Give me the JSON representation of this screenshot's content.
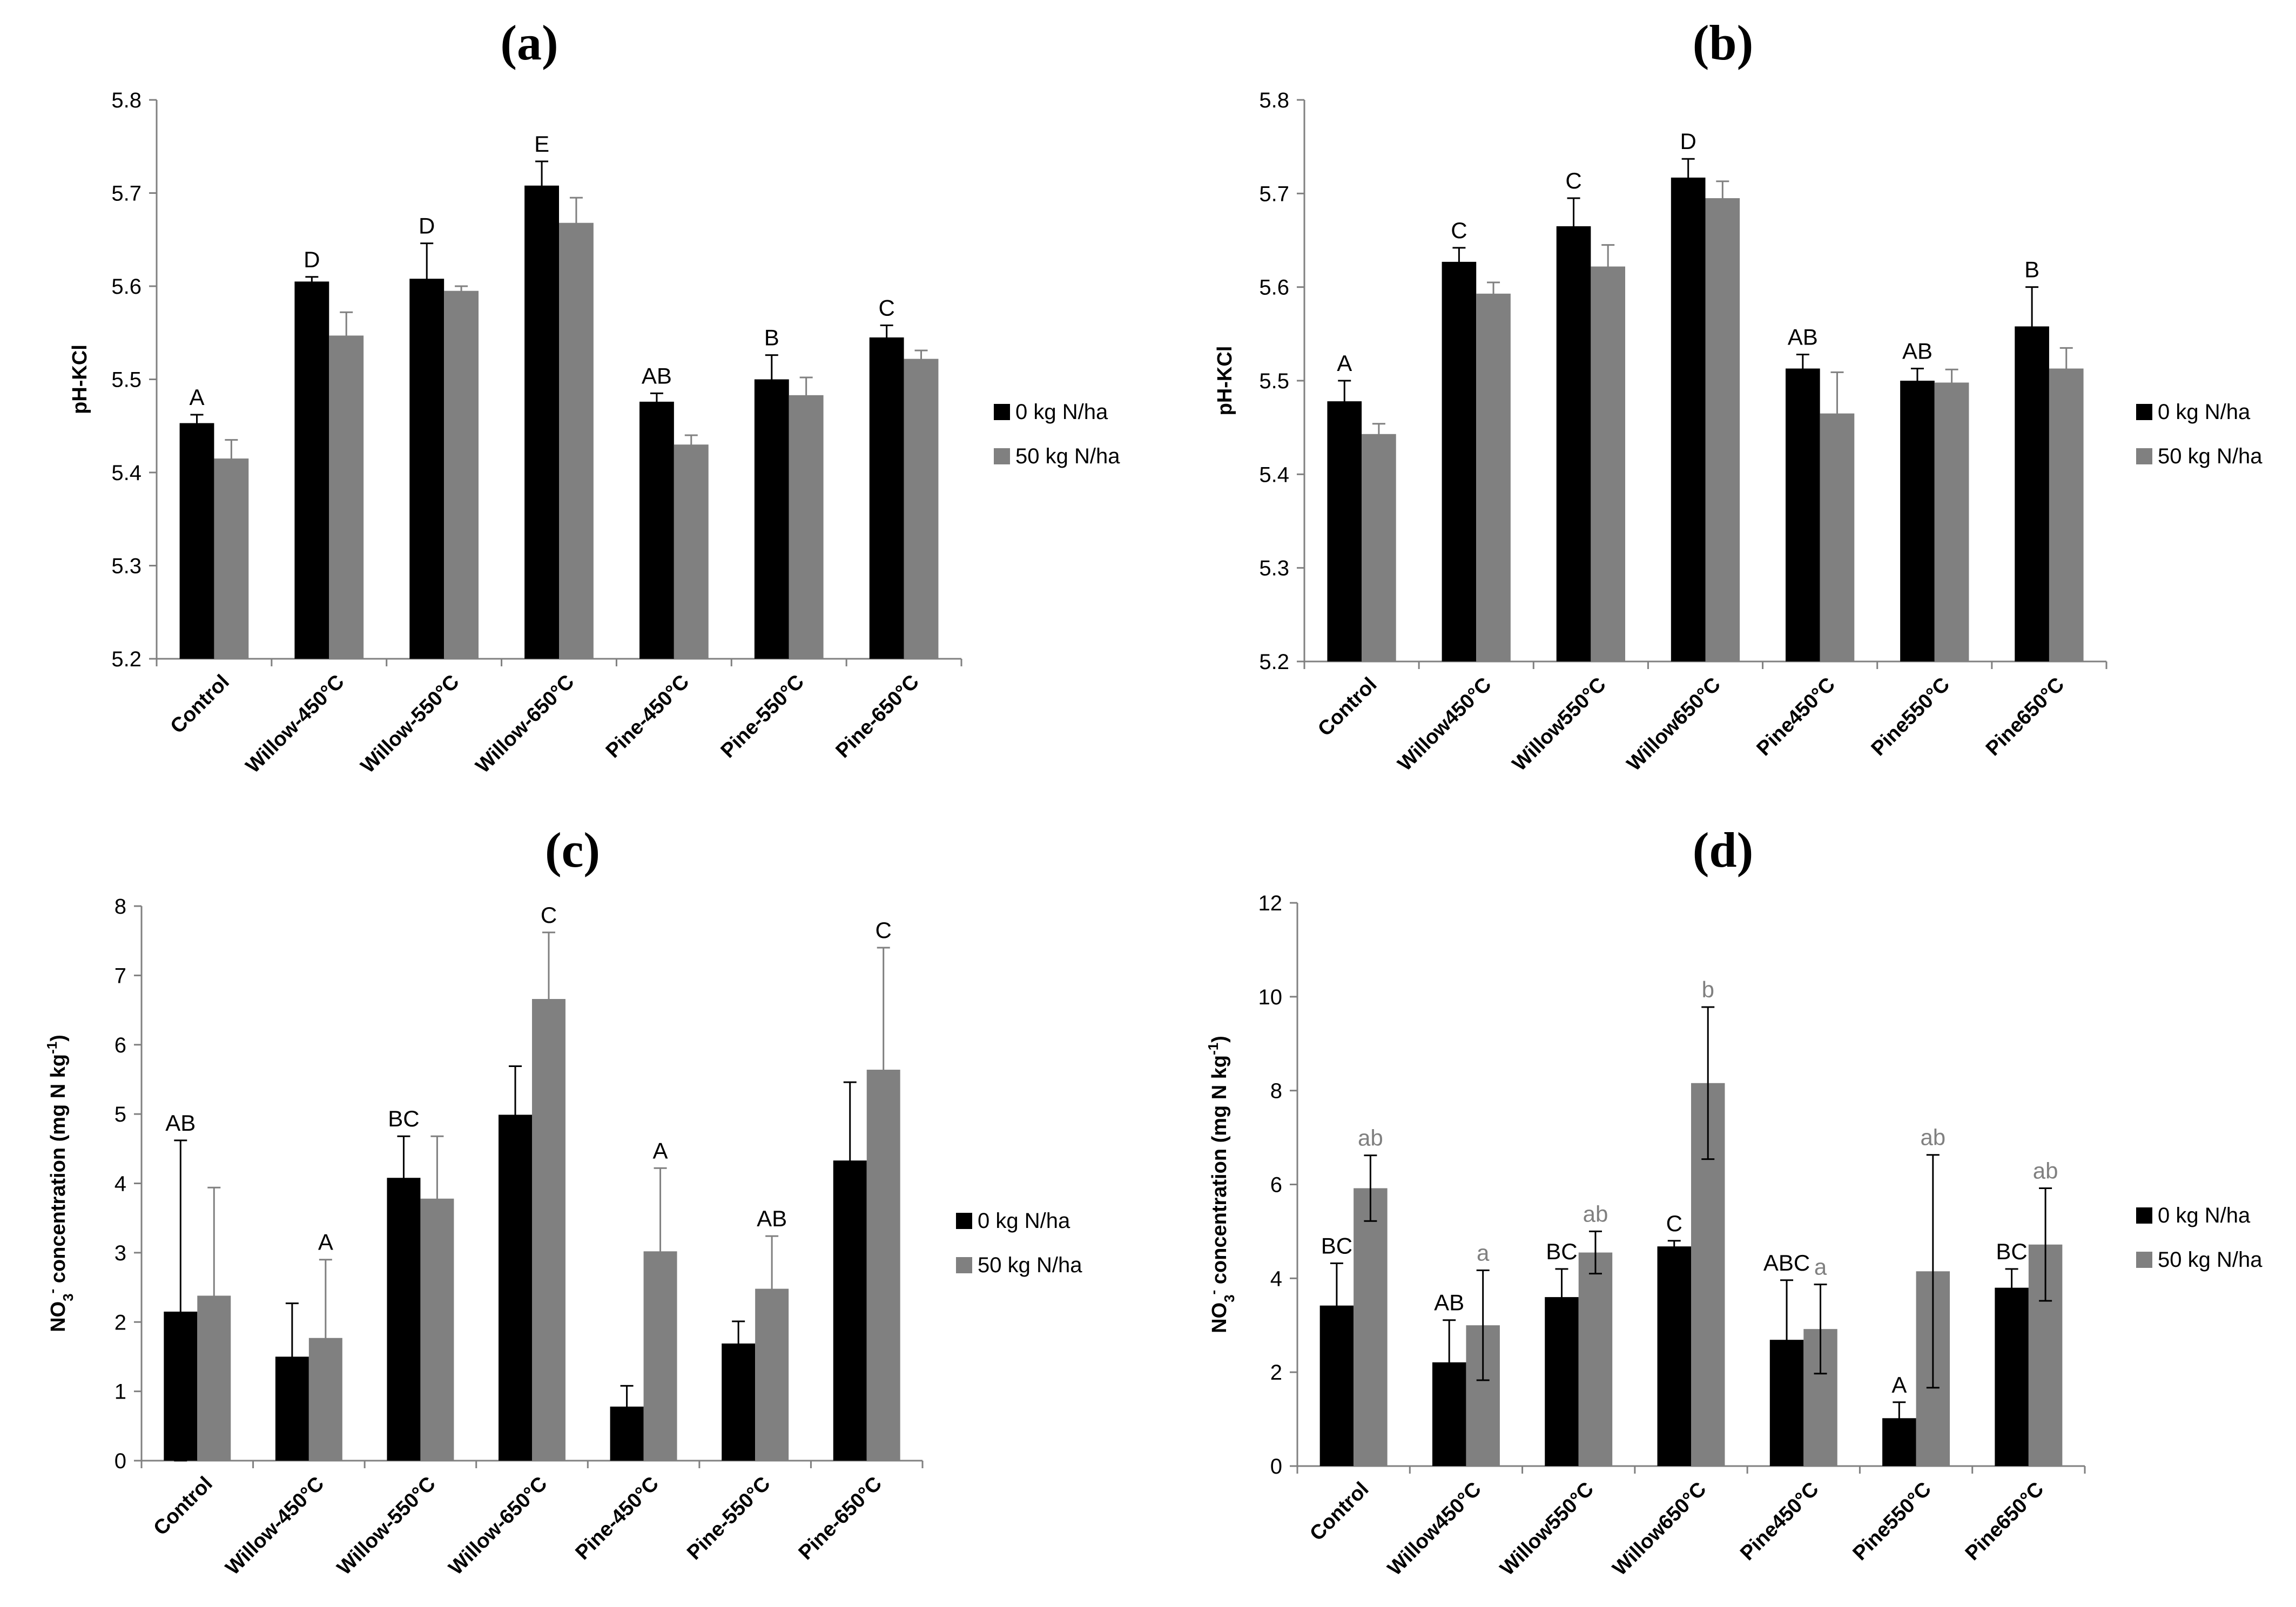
{
  "chart_data": [
    {
      "id": "a",
      "type": "bar",
      "title": "(a)",
      "ylabel": "pH-KCl",
      "ylim": [
        5.2,
        5.8
      ],
      "yticks": [
        "5.2",
        "5.3",
        "5.4",
        "5.5",
        "5.6",
        "5.7",
        "5.8"
      ],
      "categories": [
        "Control",
        "Willow-450°C",
        "Willow-550°C",
        "Willow-650°C",
        "Pine-450°C",
        "Pine-550°C",
        "Pine-650°C"
      ],
      "series": [
        {
          "name": "0 kg N/ha",
          "color": "#000000",
          "values": [
            5.453,
            5.605,
            5.608,
            5.708,
            5.476,
            5.5,
            5.545
          ],
          "errors": [
            0.009,
            0.005,
            0.038,
            0.026,
            0.009,
            0.026,
            0.013
          ]
        },
        {
          "name": "50 kg N/ha",
          "color": "#808080",
          "values": [
            5.415,
            5.547,
            5.595,
            5.668,
            5.43,
            5.483,
            5.522
          ],
          "errors": [
            0.02,
            0.025,
            0.005,
            0.027,
            0.01,
            0.019,
            0.009
          ]
        }
      ],
      "letters": [
        {
          "text": "A",
          "series": 0
        },
        {
          "text": "D",
          "series": 0
        },
        {
          "text": "D",
          "series": 0
        },
        {
          "text": "E",
          "series": 0
        },
        {
          "text": "AB",
          "series": 0
        },
        {
          "text": "B",
          "series": 0
        },
        {
          "text": "C",
          "series": 0
        }
      ],
      "legend_position": "right"
    },
    {
      "id": "b",
      "type": "bar",
      "title": "(b)",
      "ylabel": "pH-KCl",
      "ylim": [
        5.2,
        5.8
      ],
      "yticks": [
        "5.2",
        "5.3",
        "5.4",
        "5.5",
        "5.6",
        "5.7",
        "5.8"
      ],
      "categories": [
        "Control",
        "Willow450°C",
        "Willow550°C",
        "Willow650°C",
        "Pine450°C",
        "Pine550°C",
        "Pine650°C"
      ],
      "series": [
        {
          "name": "0 kg N/ha",
          "color": "#000000",
          "values": [
            5.478,
            5.627,
            5.665,
            5.717,
            5.513,
            5.5,
            5.558
          ],
          "errors": [
            0.022,
            0.015,
            0.03,
            0.02,
            0.015,
            0.013,
            0.042
          ]
        },
        {
          "name": "50 kg N/ha",
          "color": "#808080",
          "values": [
            5.443,
            5.593,
            5.622,
            5.695,
            5.465,
            5.498,
            5.513
          ],
          "errors": [
            0.011,
            0.012,
            0.023,
            0.018,
            0.044,
            0.014,
            0.022
          ]
        }
      ],
      "letters": [
        {
          "text": "A",
          "series": 0
        },
        {
          "text": "C",
          "series": 0
        },
        {
          "text": "C",
          "series": 0
        },
        {
          "text": "D",
          "series": 0
        },
        {
          "text": "AB",
          "series": 0
        },
        {
          "text": "AB",
          "series": 0
        },
        {
          "text": "B",
          "series": 0
        }
      ],
      "legend_position": "right"
    },
    {
      "id": "c",
      "type": "bar",
      "title": "(c)",
      "ylabel": "NO3- concentration (mg N kg-1)",
      "ylim": [
        0,
        8
      ],
      "yticks": [
        "0",
        "1",
        "2",
        "3",
        "4",
        "5",
        "6",
        "7",
        "8"
      ],
      "categories": [
        "Control",
        "Willow-450°C",
        "Willow-550°C",
        "Willow-650°C",
        "Pine-450°C",
        "Pine-550°C",
        "Pine-650°C"
      ],
      "series": [
        {
          "name": "0 kg N/ha",
          "color": "#000000",
          "values": [
            2.15,
            1.5,
            4.08,
            4.99,
            0.78,
            1.69,
            4.33
          ],
          "errors": [
            2.47,
            0.77,
            0.6,
            0.7,
            0.3,
            0.32,
            1.13
          ]
        },
        {
          "name": "50 kg N/ha",
          "color": "#808080",
          "values": [
            2.38,
            1.77,
            3.78,
            6.66,
            3.02,
            2.48,
            5.64
          ],
          "errors": [
            1.56,
            1.13,
            0.9,
            0.96,
            1.2,
            0.76,
            1.76
          ]
        }
      ],
      "letters": [
        {
          "text": "AB",
          "series": 0
        },
        {
          "text": "A",
          "series": 1
        },
        {
          "text": "BC",
          "series": 0
        },
        {
          "text": "C",
          "series": 1
        },
        {
          "text": "A",
          "series": 1
        },
        {
          "text": "AB",
          "series": 1
        },
        {
          "text": "C",
          "series": 1
        }
      ],
      "legend_position": "right"
    },
    {
      "id": "d",
      "type": "bar",
      "title": "(d)",
      "ylabel": "NO3- concentration (mg N kg-1)",
      "ylim": [
        0,
        12
      ],
      "yticks": [
        "0",
        "2",
        "4",
        "6",
        "8",
        "10",
        "12"
      ],
      "categories": [
        "Control",
        "Willow450°C",
        "Willow550°C",
        "Willow650°C",
        "Pine450°C",
        "Pine550°C",
        "Pine650°C"
      ],
      "series": [
        {
          "name": "0 kg N/ha",
          "color": "#000000",
          "values": [
            3.42,
            2.21,
            3.6,
            4.68,
            2.69,
            1.02,
            3.8
          ],
          "errors": [
            0.9,
            0.9,
            0.6,
            0.12,
            1.27,
            0.34,
            0.4
          ]
        },
        {
          "name": "50 kg N/ha",
          "color": "#808080",
          "values": [
            5.92,
            3.0,
            4.55,
            8.16,
            2.92,
            4.15,
            4.72
          ],
          "errors": [
            0.7,
            1.17,
            0.45,
            1.62,
            0.95,
            2.48,
            1.2
          ]
        }
      ],
      "letters": [
        {
          "text": "BC",
          "series": 0
        },
        {
          "text": "ab",
          "series": 1
        },
        {
          "text": "AB",
          "series": 0
        },
        {
          "text": "a",
          "series": 1
        },
        {
          "text": "BC",
          "series": 0
        },
        {
          "text": "ab",
          "series": 1
        },
        {
          "text": "C",
          "series": 0
        },
        {
          "text": "b",
          "series": 1
        },
        {
          "text": "ABC",
          "series": 0
        },
        {
          "text": "a",
          "series": 1
        },
        {
          "text": "A",
          "series": 0
        },
        {
          "text": "ab",
          "series": 1
        },
        {
          "text": "BC",
          "series": 0
        },
        {
          "text": "ab",
          "series": 1
        }
      ],
      "legend_position": "right"
    }
  ]
}
